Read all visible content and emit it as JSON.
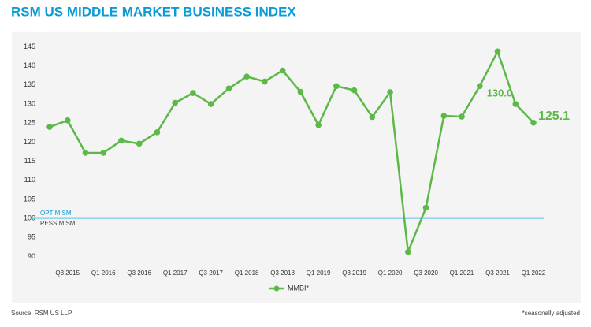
{
  "chart_data": {
    "type": "line",
    "title": "RSM US MIDDLE MARKET BUSINESS INDEX",
    "categories": [
      null,
      "Q3 2015",
      null,
      "Q1 2016",
      null,
      "Q3 2016",
      null,
      "Q1 2017",
      null,
      "Q3 2017",
      null,
      "Q1 2018",
      null,
      "Q3 2018",
      null,
      "Q1 2019",
      null,
      "Q3 2019",
      null,
      "Q1 2020",
      null,
      "Q3 2020",
      null,
      "Q1 2021",
      null,
      "Q3 2021",
      null,
      "Q1 2022"
    ],
    "series": [
      {
        "name": "MMBI*",
        "color": "#5cb947",
        "values": [
          124.0,
          125.7,
          117.2,
          117.2,
          120.4,
          119.6,
          122.6,
          130.3,
          132.9,
          130.0,
          134.1,
          137.2,
          135.9,
          138.8,
          133.2,
          124.5,
          134.7,
          133.6,
          126.6,
          133.1,
          91.2,
          102.8,
          126.9,
          126.7,
          134.7,
          143.8,
          130.0,
          125.1
        ],
        "value_labels": [
          null,
          null,
          null,
          null,
          null,
          null,
          null,
          null,
          null,
          null,
          null,
          null,
          null,
          null,
          null,
          null,
          null,
          null,
          null,
          null,
          null,
          null,
          null,
          null,
          null,
          null,
          "130.0",
          "125.1"
        ]
      }
    ],
    "ylim": [
      87,
      148
    ],
    "yticks": [
      90,
      95,
      100,
      105,
      110,
      115,
      120,
      125,
      130,
      135,
      140,
      145
    ],
    "reference_line": {
      "value": 100,
      "color": "#5bc2e7",
      "labels": [
        "OPTIMISM",
        "PESSIMISM"
      ]
    },
    "source": "Source: RSM US LLP",
    "note": "*seasonally adjusted"
  }
}
